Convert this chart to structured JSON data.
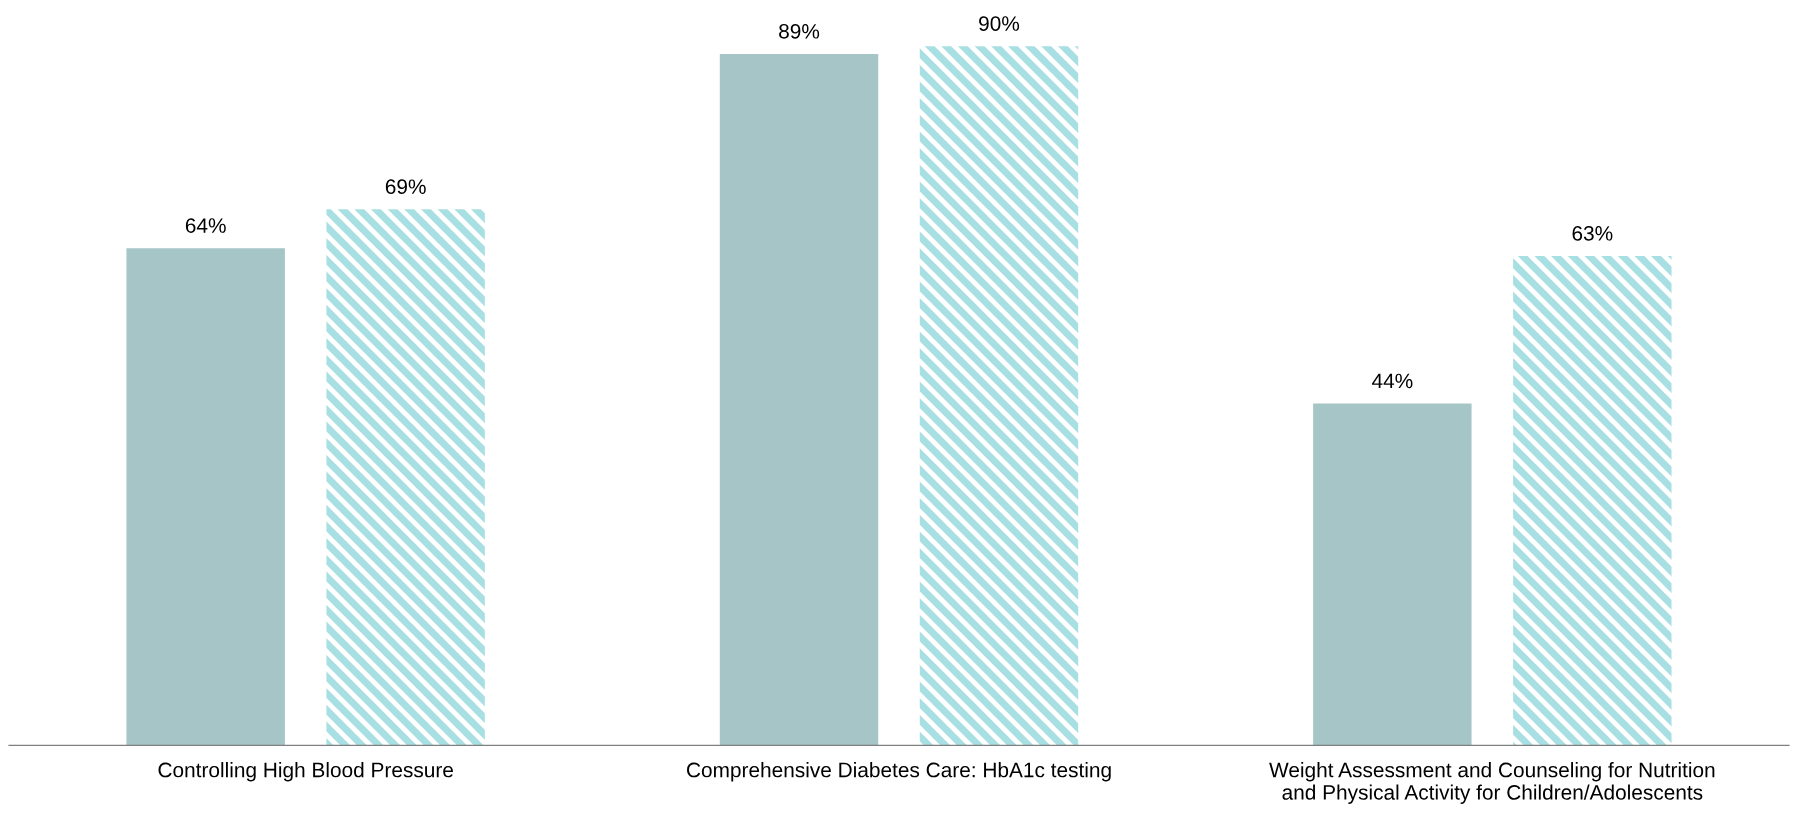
{
  "chart_data": {
    "type": "bar",
    "categories": [
      "Controlling High Blood Pressure",
      "Comprehensive Diabetes Care: HbA1c testing",
      "Weight Assessment and Counseling for Nutrition\nand Physical Activity for Children/Adolescents"
    ],
    "series": [
      {
        "color": "#a6c5c7",
        "values": [
          64,
          89,
          44
        ],
        "value_labels": [
          "64%",
          "89%",
          "44%"
        ]
      },
      {
        "color": "#a8dfe2",
        "values": [
          69,
          90,
          63
        ],
        "value_labels": [
          "69%",
          "90%",
          "63%"
        ]
      }
    ]
  }
}
